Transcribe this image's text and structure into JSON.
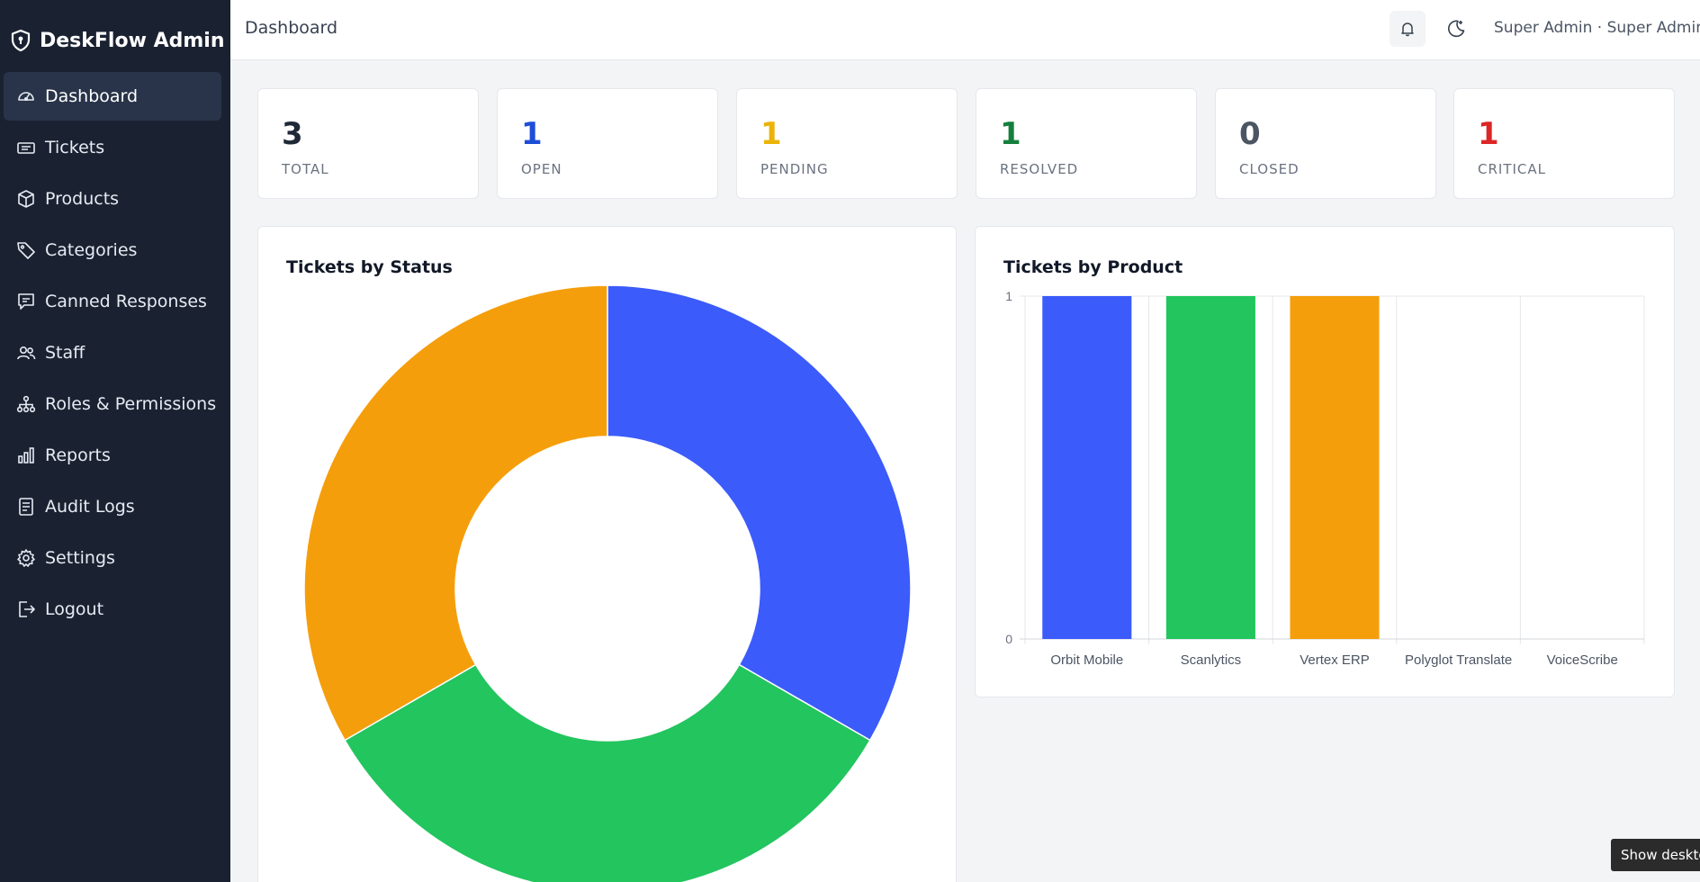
{
  "brand": {
    "name": "DeskFlow Admin"
  },
  "sidebar": {
    "items": [
      {
        "label": "Dashboard",
        "icon": "gauge-icon",
        "active": true
      },
      {
        "label": "Tickets",
        "icon": "ticket-icon"
      },
      {
        "label": "Products",
        "icon": "box-icon"
      },
      {
        "label": "Categories",
        "icon": "tag-icon"
      },
      {
        "label": "Canned Responses",
        "icon": "message-icon"
      },
      {
        "label": "Staff",
        "icon": "users-icon"
      },
      {
        "label": "Roles & Permissions",
        "icon": "hierarchy-icon"
      },
      {
        "label": "Reports",
        "icon": "bar-chart-icon"
      },
      {
        "label": "Audit Logs",
        "icon": "log-icon"
      },
      {
        "label": "Settings",
        "icon": "gear-icon"
      },
      {
        "label": "Logout",
        "icon": "logout-icon"
      }
    ]
  },
  "header": {
    "title": "Dashboard",
    "user": "Super Admin · Super Admin"
  },
  "stats": [
    {
      "value": "3",
      "label": "TOTAL",
      "color": "#1f2937"
    },
    {
      "value": "1",
      "label": "OPEN",
      "color": "#1d4ed8"
    },
    {
      "value": "1",
      "label": "PENDING",
      "color": "#eab308"
    },
    {
      "value": "1",
      "label": "RESOLVED",
      "color": "#15803d"
    },
    {
      "value": "0",
      "label": "CLOSED",
      "color": "#4b5563"
    },
    {
      "value": "1",
      "label": "CRITICAL",
      "color": "#dc2626"
    }
  ],
  "chart_data": [
    {
      "type": "pie",
      "title": "Tickets by Status",
      "donut": true,
      "values": [
        1,
        1,
        1
      ],
      "colors": [
        "#3b5bfb",
        "#22c55e",
        "#f59e0b"
      ],
      "legend": "none"
    },
    {
      "type": "bar",
      "title": "Tickets by Product",
      "categories": [
        "Orbit Mobile",
        "Scanlytics",
        "Vertex ERP",
        "Polyglot Translate",
        "VoiceScribe"
      ],
      "values": [
        1,
        1,
        1,
        0,
        0
      ],
      "colors": [
        "#3b5bfb",
        "#22c55e",
        "#f59e0b",
        "#a855f7",
        "#ef4444"
      ],
      "ylim": [
        0,
        1
      ],
      "yticks": [
        "0",
        "1"
      ],
      "grid": true
    }
  ],
  "tooltip": "Show desktop"
}
